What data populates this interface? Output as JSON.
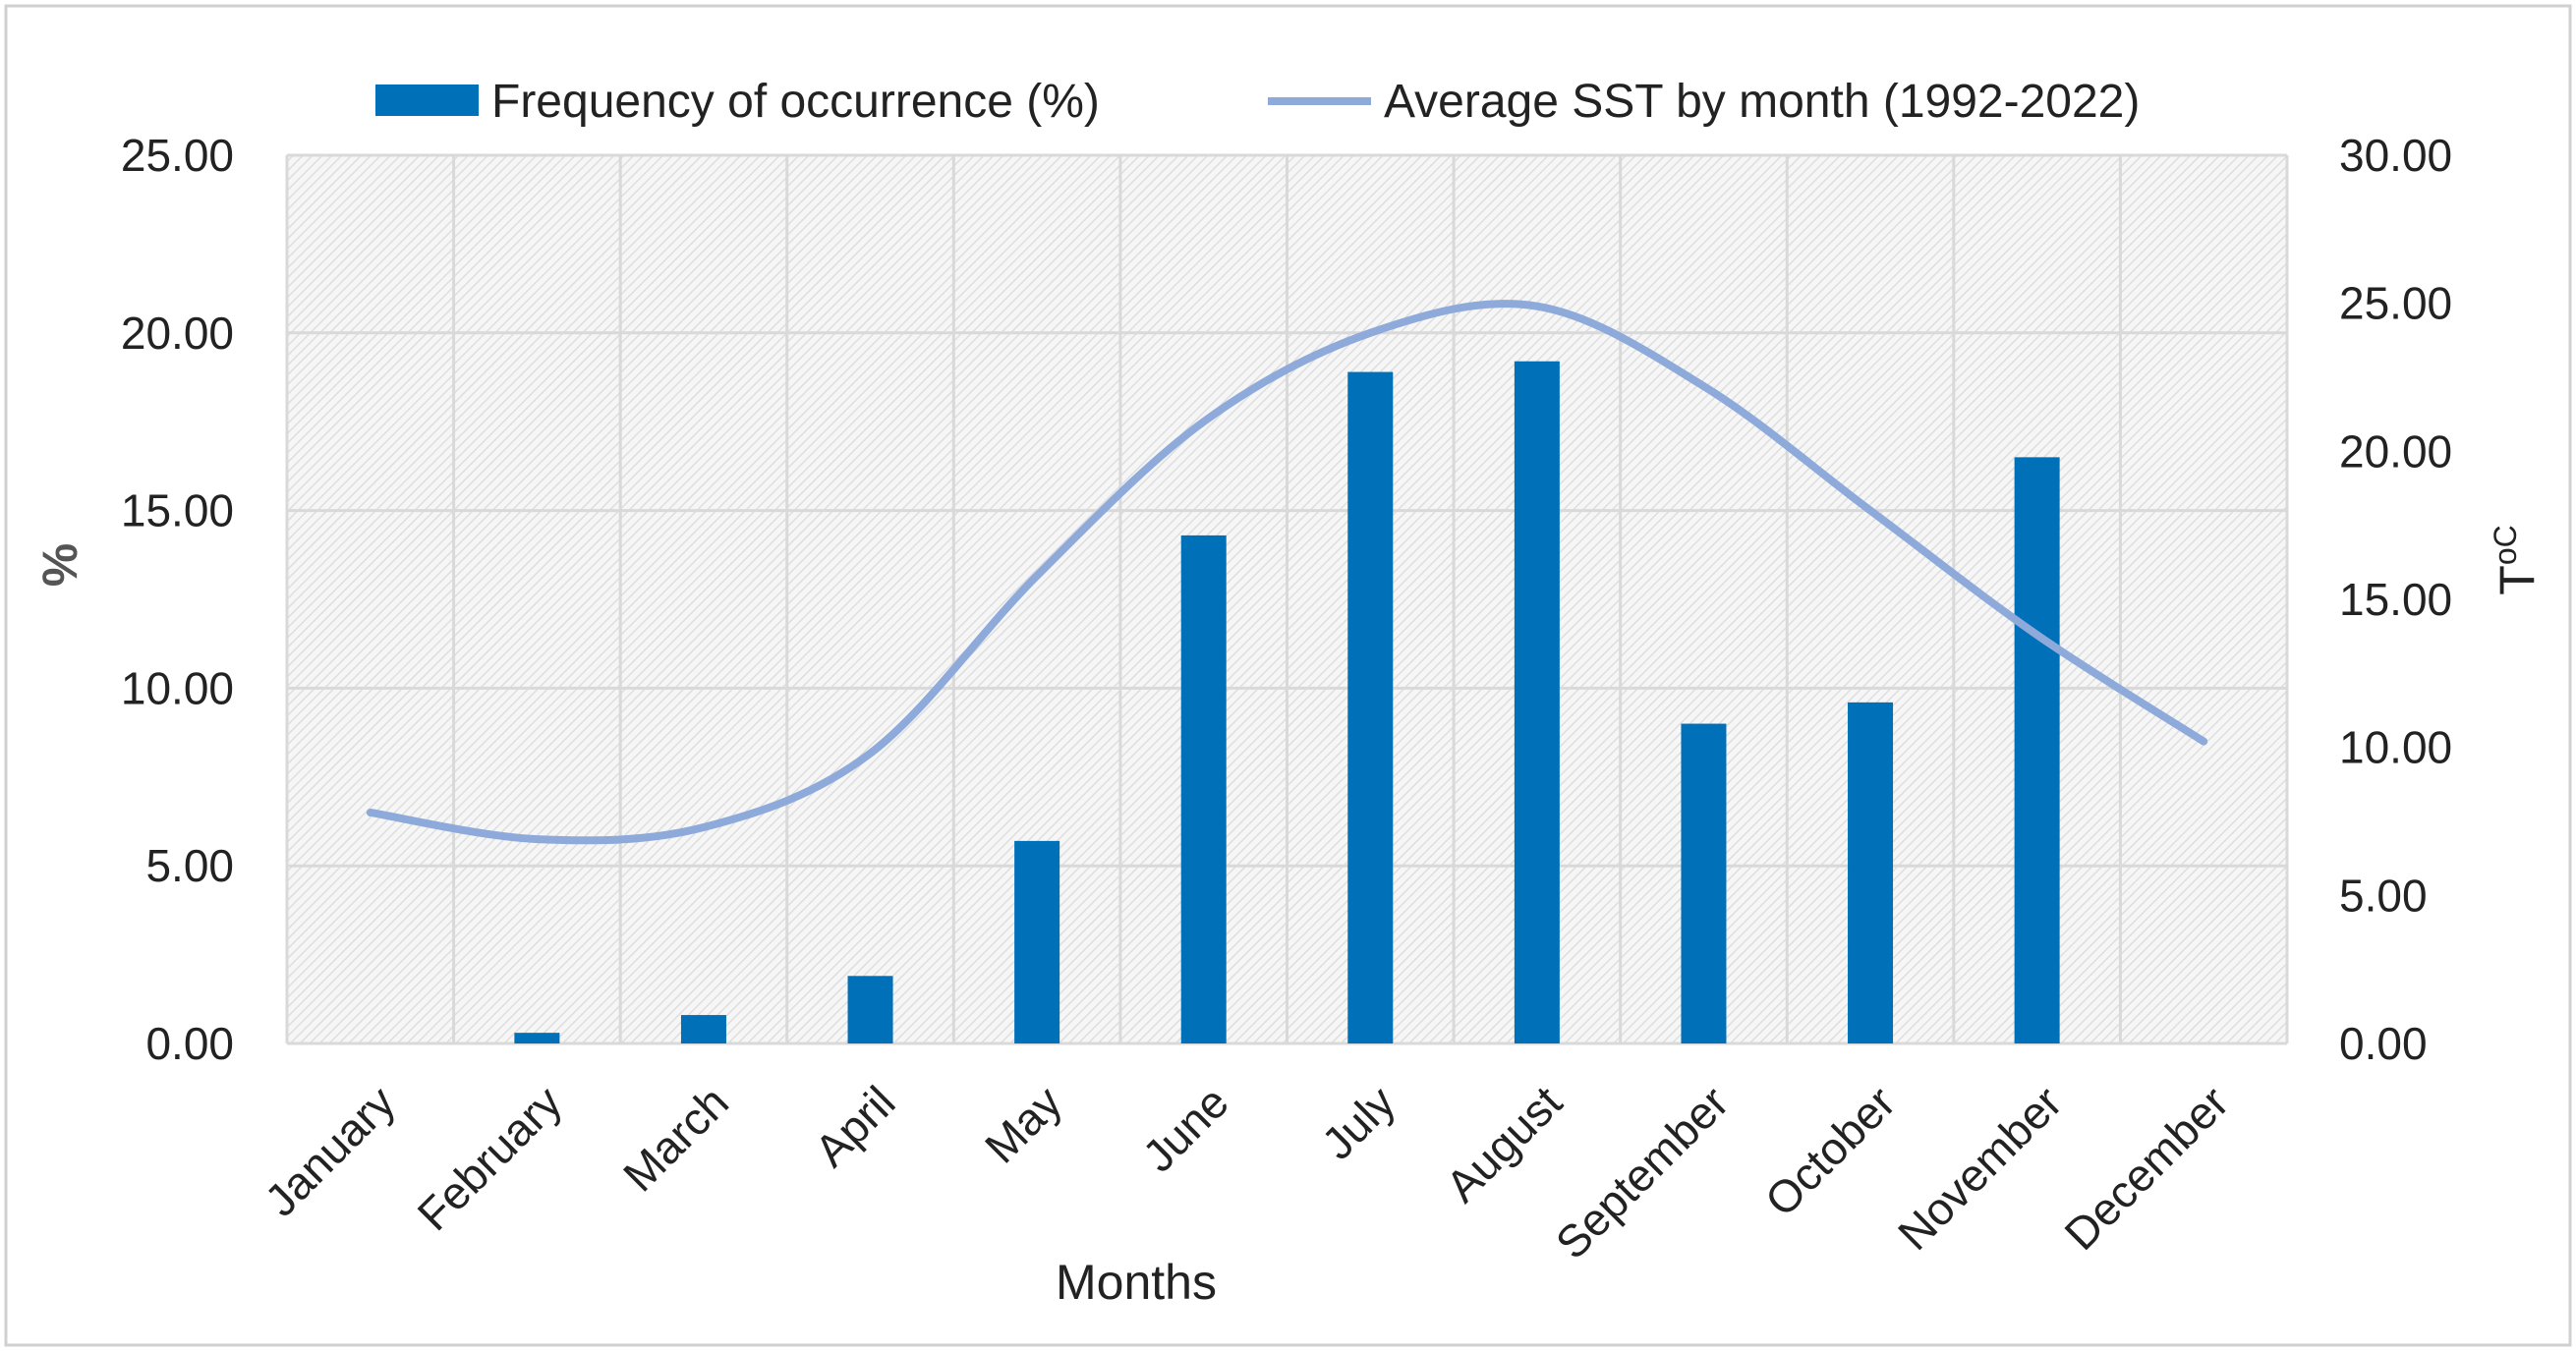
{
  "chart_data": {
    "type": "bar",
    "title": "",
    "categories": [
      "January",
      "February",
      "March",
      "April",
      "May",
      "June",
      "July",
      "August",
      "September",
      "October",
      "November",
      "December"
    ],
    "series": [
      {
        "name": "Frequency of occurrence (%)",
        "kind": "bar",
        "axis": "left",
        "color": "#0070b8",
        "values": [
          0.0,
          0.3,
          0.8,
          1.9,
          5.7,
          14.3,
          18.9,
          19.2,
          9.0,
          9.6,
          16.5,
          0.0
        ]
      },
      {
        "name": "Average SST by month (1992-2022)",
        "kind": "line",
        "axis": "right",
        "color": "#8eaadb",
        "values": [
          7.8,
          6.9,
          7.3,
          9.8,
          15.8,
          21.0,
          24.0,
          24.9,
          22.2,
          18.0,
          13.8,
          10.2
        ]
      }
    ],
    "xlabel": "Months",
    "ylabel": "%",
    "y2label": "T",
    "y2label_sup": "oC",
    "ylim": [
      0,
      25
    ],
    "y2lim": [
      0,
      30
    ],
    "yticks": [
      "0.00",
      "5.00",
      "10.00",
      "15.00",
      "20.00",
      "25.00"
    ],
    "y2ticks": [
      "0.00",
      "5.00",
      "10.00",
      "15.00",
      "20.00",
      "25.00",
      "30.00"
    ],
    "legend_position": "top",
    "grid": true
  }
}
